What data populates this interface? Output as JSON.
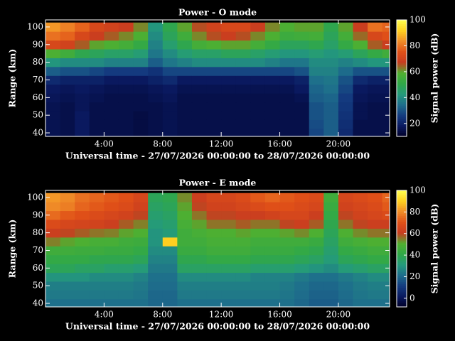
{
  "chart_data": [
    {
      "type": "heatmap",
      "title": "Power - O mode",
      "xlabel": "Universal time - 27/07/2026 00:00:00 to 28/07/2026 00:00:00",
      "ylabel": "Range (km)",
      "x": [
        0.5,
        1.5,
        2.5,
        3.5,
        4.5,
        5.5,
        6.5,
        7.5,
        8.5,
        9.5,
        10.5,
        11.5,
        12.5,
        13.5,
        14.5,
        15.5,
        16.5,
        17.5,
        18.5,
        19.5,
        20.5,
        21.5,
        22.5,
        23.5
      ],
      "y": [
        40,
        45,
        50,
        55,
        60,
        65,
        70,
        75,
        80,
        85,
        90,
        95,
        100
      ],
      "z": [
        [
          16,
          15,
          18,
          15,
          15,
          15,
          14,
          15,
          16,
          15,
          15,
          15,
          15,
          15,
          15,
          15,
          15,
          15,
          28,
          32,
          22,
          15,
          15,
          15
        ],
        [
          16,
          15,
          18,
          15,
          15,
          15,
          14,
          15,
          16,
          15,
          15,
          15,
          15,
          15,
          15,
          15,
          15,
          15,
          29,
          32,
          23,
          15,
          15,
          15
        ],
        [
          16,
          15,
          18,
          15,
          15,
          15,
          14,
          15,
          16,
          15,
          15,
          15,
          15,
          15,
          15,
          15,
          15,
          15,
          30,
          32,
          24,
          16,
          15,
          15
        ],
        [
          16,
          15,
          17,
          15,
          15,
          15,
          15,
          15,
          16,
          15,
          15,
          15,
          15,
          15,
          15,
          15,
          15,
          15,
          30,
          32,
          25,
          16,
          15,
          15
        ],
        [
          17,
          16,
          17,
          16,
          15,
          15,
          15,
          16,
          17,
          15,
          15,
          15,
          15,
          15,
          15,
          15,
          15,
          16,
          32,
          33,
          26,
          17,
          16,
          16
        ],
        [
          18,
          17,
          18,
          17,
          16,
          16,
          16,
          17,
          18,
          16,
          16,
          16,
          16,
          16,
          16,
          16,
          16,
          18,
          33,
          35,
          28,
          18,
          17,
          17
        ],
        [
          22,
          20,
          20,
          20,
          18,
          18,
          18,
          20,
          22,
          18,
          18,
          18,
          18,
          18,
          18,
          18,
          18,
          20,
          35,
          36,
          30,
          22,
          20,
          20
        ],
        [
          32,
          30,
          30,
          28,
          26,
          26,
          26,
          24,
          28,
          28,
          28,
          28,
          28,
          28,
          28,
          28,
          28,
          30,
          38,
          38,
          34,
          30,
          30,
          30
        ],
        [
          42,
          40,
          40,
          40,
          38,
          38,
          38,
          32,
          36,
          38,
          40,
          40,
          40,
          40,
          40,
          38,
          36,
          36,
          40,
          40,
          38,
          40,
          42,
          42
        ],
        [
          58,
          55,
          50,
          48,
          46,
          46,
          44,
          36,
          40,
          44,
          46,
          46,
          48,
          48,
          46,
          44,
          42,
          42,
          44,
          42,
          44,
          48,
          52,
          55
        ],
        [
          72,
          70,
          65,
          60,
          58,
          56,
          52,
          38,
          45,
          50,
          56,
          58,
          60,
          60,
          56,
          52,
          48,
          48,
          50,
          46,
          52,
          58,
          65,
          68
        ],
        [
          80,
          78,
          72,
          68,
          65,
          62,
          58,
          40,
          48,
          55,
          62,
          66,
          68,
          66,
          62,
          58,
          54,
          55,
          56,
          48,
          56,
          64,
          72,
          75
        ],
        [
          85,
          82,
          78,
          72,
          70,
          68,
          62,
          42,
          50,
          60,
          66,
          70,
          72,
          72,
          68,
          62,
          58,
          60,
          60,
          50,
          60,
          68,
          80,
          78
        ]
      ],
      "xlim": [
        0,
        23.5
      ],
      "ylim": [
        38,
        104
      ],
      "xticks": [
        {
          "value": 4,
          "label": "4:00"
        },
        {
          "value": 8,
          "label": "8:00"
        },
        {
          "value": 12,
          "label": "12:00"
        },
        {
          "value": 16,
          "label": "16:00"
        },
        {
          "value": 20,
          "label": "20:00"
        }
      ],
      "yticks": [
        40,
        50,
        60,
        70,
        80,
        90,
        100
      ],
      "colorbar": {
        "label": "Signal power (dB)",
        "lim": [
          10,
          100
        ],
        "ticks": [
          20,
          40,
          60,
          80,
          100
        ]
      },
      "colormap": [
        "#000028",
        "#0a1a60",
        "#143c80",
        "#1e6e8c",
        "#249a7c",
        "#30a848",
        "#50b030",
        "#c83c20",
        "#e05018",
        "#f08c28",
        "#ffd020",
        "#ffff50"
      ]
    },
    {
      "type": "heatmap",
      "title": "Power - E mode",
      "xlabel": "Universal time - 27/07/2026 00:00:00 to 28/07/2026 00:00:00",
      "ylabel": "Range (km)",
      "x": [
        0.5,
        1.5,
        2.5,
        3.5,
        4.5,
        5.5,
        6.5,
        7.5,
        8.5,
        9.5,
        10.5,
        11.5,
        12.5,
        13.5,
        14.5,
        15.5,
        16.5,
        17.5,
        18.5,
        19.5,
        20.5,
        21.5,
        22.5,
        23.5
      ],
      "y": [
        40,
        45,
        50,
        55,
        60,
        65,
        70,
        75,
        80,
        85,
        90,
        95,
        100
      ],
      "z": [
        [
          22,
          22,
          22,
          22,
          22,
          22,
          22,
          20,
          20,
          22,
          22,
          22,
          22,
          22,
          22,
          22,
          22,
          20,
          18,
          18,
          20,
          22,
          22,
          22
        ],
        [
          24,
          24,
          24,
          24,
          24,
          24,
          23,
          20,
          20,
          24,
          24,
          24,
          24,
          24,
          24,
          24,
          23,
          21,
          19,
          19,
          21,
          23,
          24,
          24
        ],
        [
          25,
          25,
          25,
          25,
          25,
          25,
          24,
          21,
          21,
          25,
          25,
          25,
          25,
          25,
          25,
          25,
          24,
          22,
          20,
          20,
          22,
          24,
          25,
          25
        ],
        [
          30,
          30,
          30,
          28,
          28,
          28,
          26,
          22,
          22,
          28,
          28,
          28,
          28,
          28,
          26,
          26,
          26,
          24,
          22,
          22,
          24,
          26,
          28,
          28
        ],
        [
          38,
          38,
          36,
          36,
          34,
          34,
          32,
          24,
          24,
          36,
          36,
          36,
          36,
          36,
          34,
          34,
          34,
          32,
          30,
          28,
          32,
          34,
          36,
          36
        ],
        [
          42,
          42,
          42,
          40,
          40,
          40,
          38,
          26,
          26,
          40,
          40,
          42,
          42,
          42,
          40,
          40,
          40,
          38,
          36,
          32,
          38,
          40,
          42,
          42
        ],
        [
          46,
          46,
          45,
          45,
          44,
          44,
          42,
          28,
          28,
          44,
          44,
          46,
          46,
          46,
          44,
          44,
          44,
          42,
          40,
          34,
          42,
          44,
          46,
          46
        ],
        [
          55,
          52,
          50,
          48,
          48,
          46,
          45,
          30,
          90,
          46,
          46,
          48,
          48,
          48,
          46,
          46,
          46,
          46,
          44,
          36,
          46,
          48,
          50,
          50
        ],
        [
          62,
          60,
          58,
          56,
          55,
          52,
          50,
          30,
          32,
          46,
          48,
          50,
          50,
          52,
          50,
          50,
          52,
          54,
          50,
          38,
          50,
          54,
          56,
          56
        ],
        [
          68,
          66,
          65,
          64,
          62,
          58,
          55,
          32,
          34,
          48,
          52,
          56,
          56,
          58,
          56,
          56,
          60,
          62,
          58,
          40,
          56,
          60,
          62,
          62
        ],
        [
          75,
          72,
          70,
          68,
          66,
          64,
          60,
          34,
          36,
          50,
          56,
          60,
          60,
          62,
          62,
          64,
          66,
          66,
          62,
          42,
          60,
          64,
          66,
          68
        ],
        [
          80,
          78,
          74,
          72,
          70,
          68,
          64,
          36,
          38,
          52,
          60,
          64,
          64,
          66,
          68,
          70,
          70,
          68,
          66,
          44,
          64,
          66,
          68,
          72
        ],
        [
          82,
          80,
          76,
          74,
          72,
          70,
          66,
          38,
          40,
          54,
          62,
          66,
          66,
          68,
          72,
          74,
          72,
          70,
          68,
          46,
          66,
          68,
          70,
          74
        ]
      ],
      "xlim": [
        0,
        23.5
      ],
      "ylim": [
        38,
        104
      ],
      "xticks": [
        {
          "value": 4,
          "label": "4:00"
        },
        {
          "value": 8,
          "label": "8:00"
        },
        {
          "value": 12,
          "label": "12:00"
        },
        {
          "value": 16,
          "label": "16:00"
        },
        {
          "value": 20,
          "label": "20:00"
        }
      ],
      "yticks": [
        40,
        50,
        60,
        70,
        80,
        90,
        100
      ],
      "colorbar": {
        "label": "Signal power (dB)",
        "lim": [
          -8,
          100
        ],
        "ticks": [
          0,
          20,
          40,
          60,
          80,
          100
        ]
      },
      "colormap": [
        "#000028",
        "#0a1a60",
        "#143c80",
        "#1e6e8c",
        "#249a7c",
        "#30a848",
        "#50b030",
        "#c83c20",
        "#e05018",
        "#f08c28",
        "#ffd020",
        "#ffff50"
      ]
    }
  ]
}
